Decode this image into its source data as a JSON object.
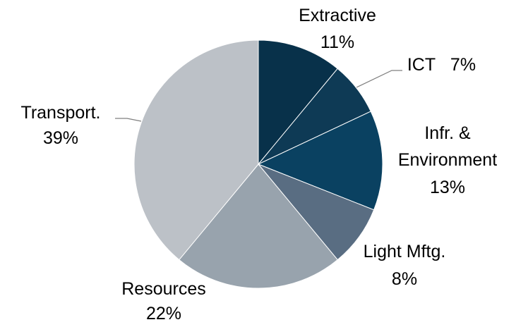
{
  "chart_data": {
    "type": "pie",
    "categories": [
      "Extractive",
      "ICT",
      "Infr. & Environment",
      "Light Mftg.",
      "Resources",
      "Transport."
    ],
    "values": [
      11,
      7,
      13,
      8,
      22,
      39
    ],
    "value_labels": [
      "11%",
      "7%",
      "13%",
      "8%",
      "22%",
      "39%"
    ],
    "colors": [
      "#08314a",
      "#0e3a55",
      "#0a4161",
      "#596d82",
      "#98a3ad",
      "#bcc1c7"
    ]
  }
}
